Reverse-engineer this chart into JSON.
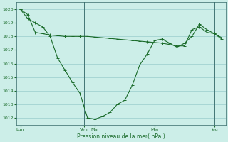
{
  "background_color": "#cceee8",
  "grid_color": "#99cccc",
  "line_color": "#1a6b2a",
  "line_color2": "#2d7a3a",
  "ylabel": "Pression niveau de la mer( hPa )",
  "ylim": [
    1011.5,
    1020.5
  ],
  "yticks": [
    1012,
    1013,
    1014,
    1015,
    1016,
    1017,
    1018,
    1019,
    1020
  ],
  "x_day_labels": [
    "Lun",
    "Ven",
    "Mar",
    "Mer",
    "Jeu"
  ],
  "x_day_positions": [
    0,
    8.5,
    10,
    18,
    26
  ],
  "xlim": [
    -0.5,
    27.5
  ],
  "line1_x": [
    0,
    1,
    2,
    3,
    4,
    5,
    6,
    7,
    8,
    9,
    10,
    11,
    12,
    13,
    14,
    15,
    16,
    17,
    18,
    19,
    20,
    21,
    22,
    23,
    24,
    25,
    26,
    27
  ],
  "line1_y": [
    1020.0,
    1019.3,
    1019.0,
    1018.7,
    1018.0,
    1016.4,
    1015.5,
    1014.6,
    1013.8,
    1012.0,
    1011.9,
    1012.1,
    1012.4,
    1013.0,
    1013.3,
    1014.4,
    1015.9,
    1016.7,
    1017.7,
    1017.8,
    1017.5,
    1017.2,
    1017.5,
    1018.0,
    1018.9,
    1018.5,
    1018.2,
    1017.8
  ],
  "line2_x": [
    0,
    1,
    2,
    3,
    4,
    5,
    6,
    7,
    8,
    9,
    10,
    11,
    12,
    13,
    14,
    15,
    16,
    17,
    18,
    19,
    20,
    21,
    22,
    23,
    24,
    25,
    26,
    27
  ],
  "line2_y": [
    1020.0,
    1019.6,
    1018.3,
    1018.2,
    1018.1,
    1018.05,
    1018.0,
    1018.0,
    1018.0,
    1018.0,
    1017.95,
    1017.9,
    1017.85,
    1017.8,
    1017.75,
    1017.7,
    1017.65,
    1017.6,
    1017.55,
    1017.5,
    1017.4,
    1017.3,
    1017.3,
    1018.5,
    1018.7,
    1018.3,
    1018.2,
    1017.9
  ],
  "vertical_lines_x": [
    0,
    8.5,
    10,
    18,
    26
  ],
  "figsize": [
    3.2,
    2.0
  ],
  "dpi": 100
}
